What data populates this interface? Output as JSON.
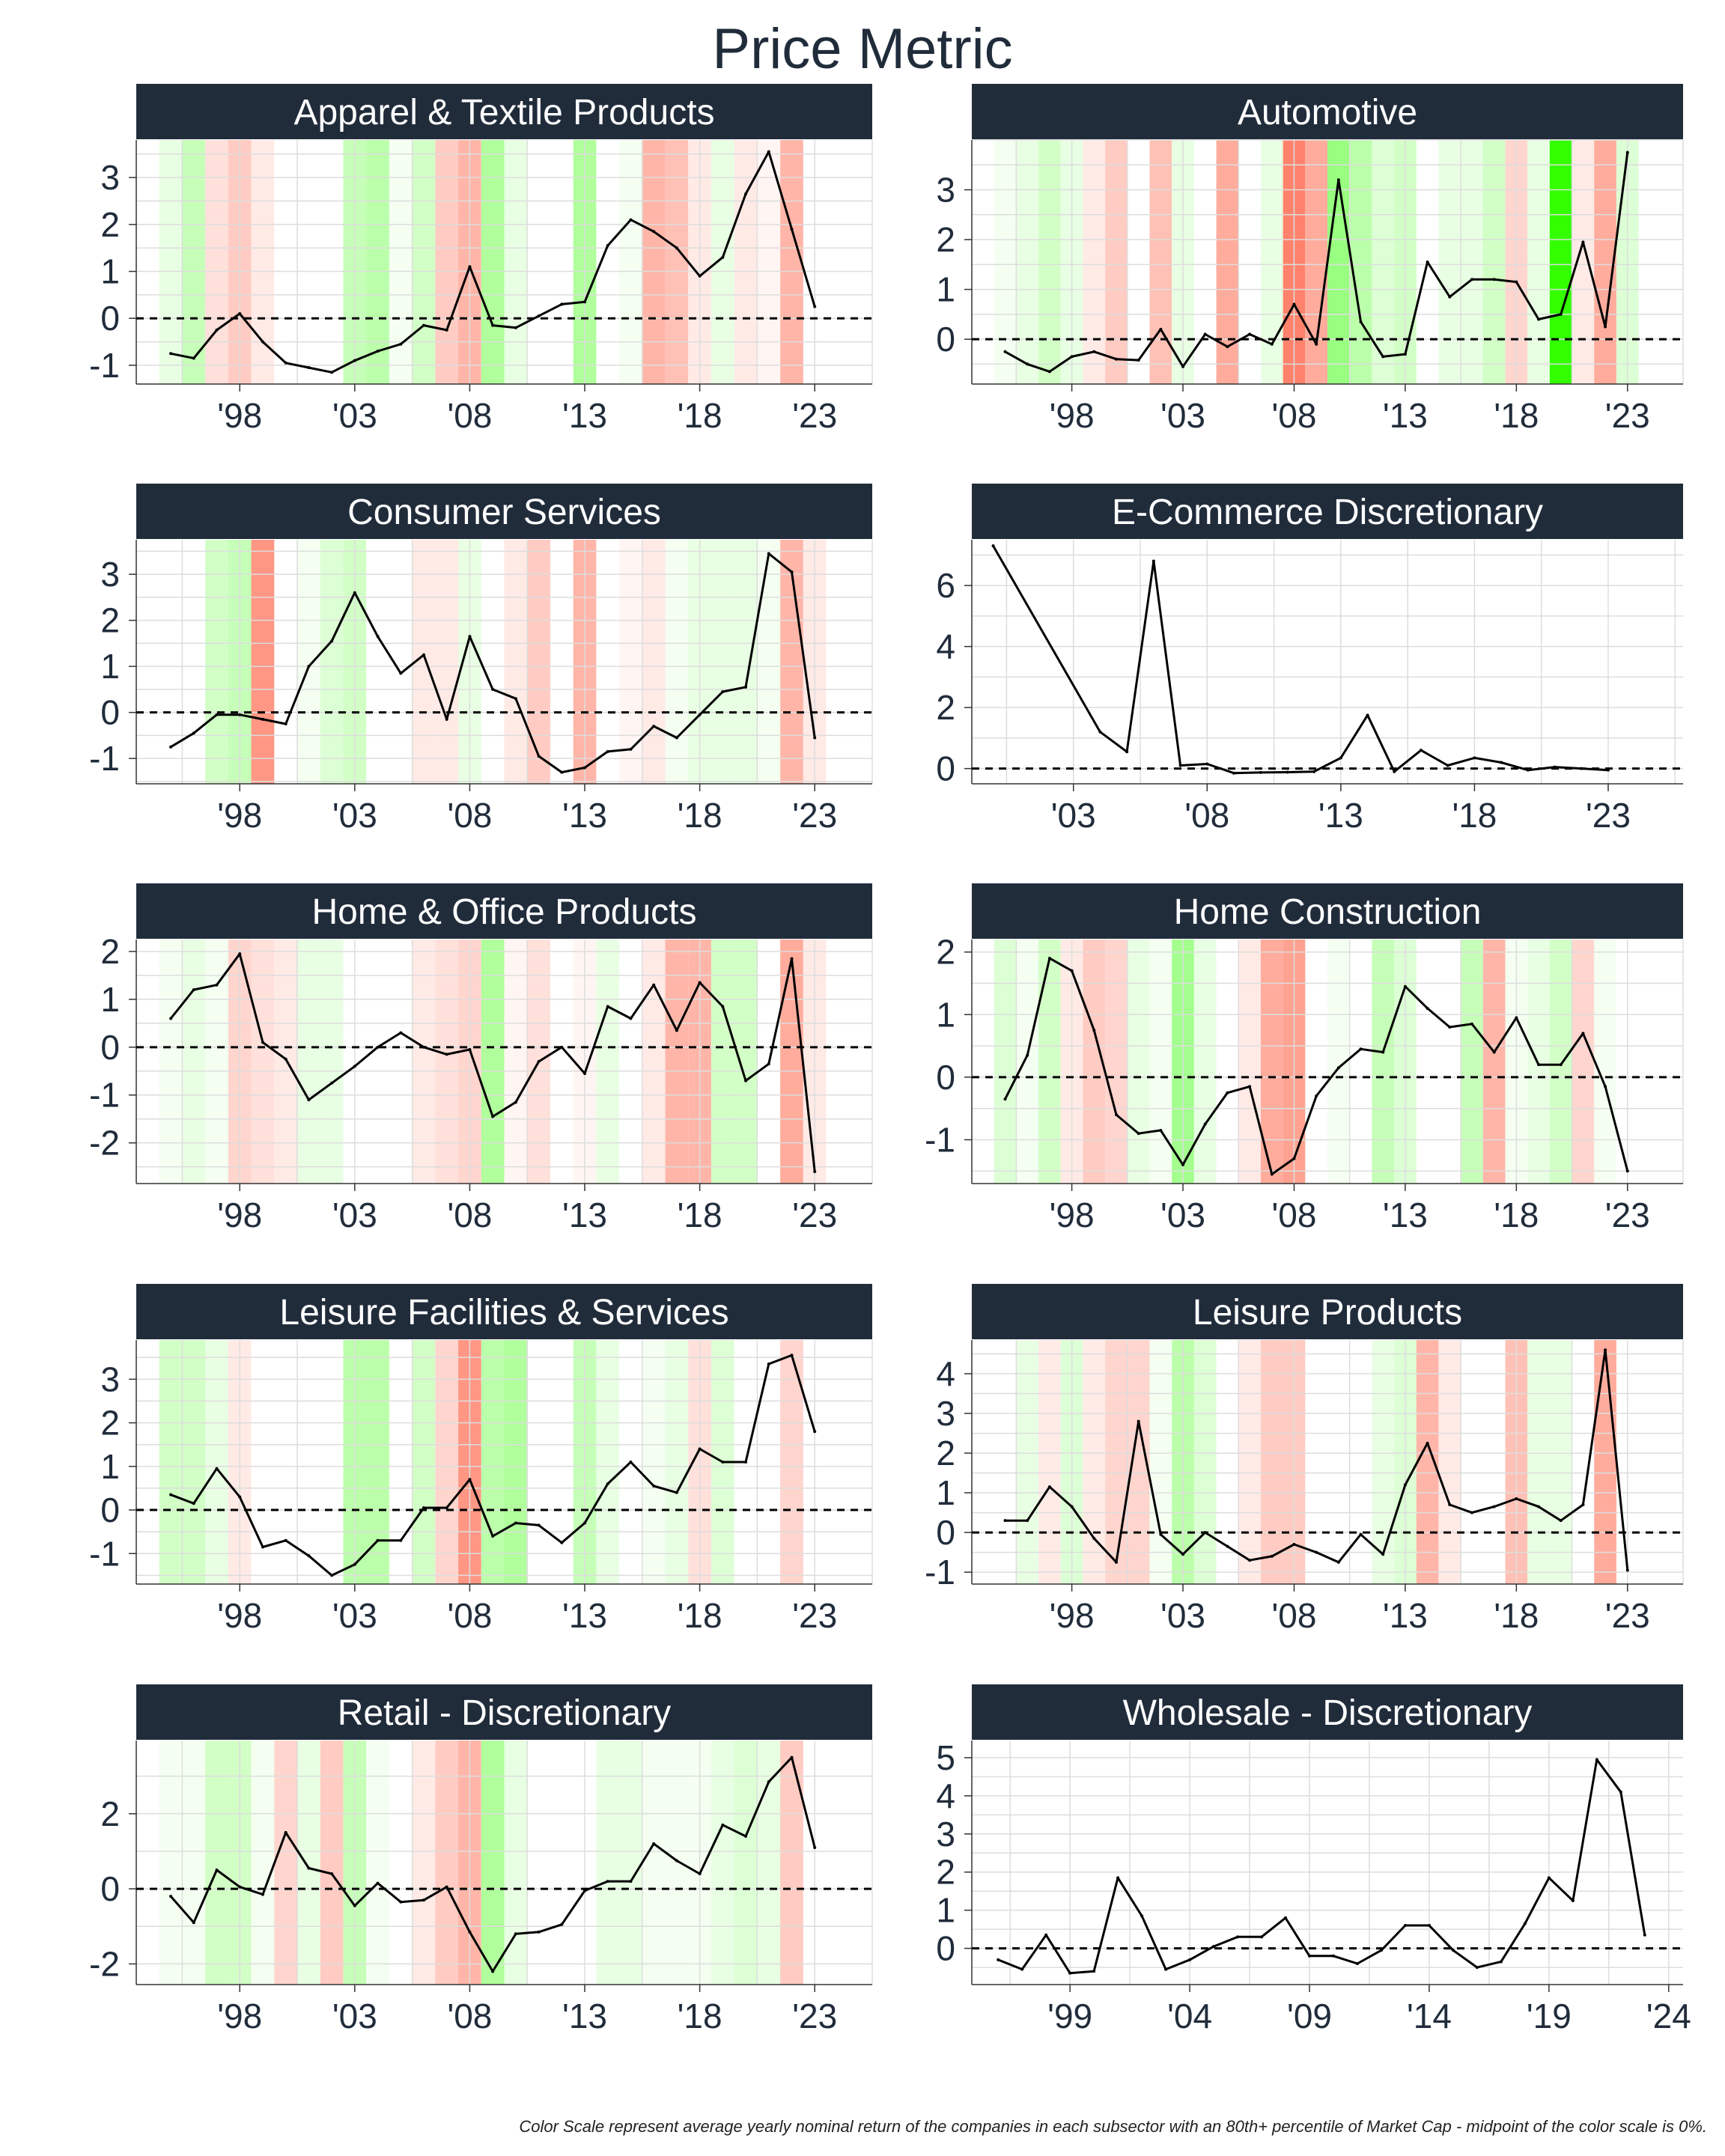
{
  "title": "Price Metric",
  "footnote": "Color Scale represent average yearly nominal return of the companies in each subsector with an 80th+ percentile of Market Cap - midpoint of the color scale is 0%.",
  "colors": {
    "header_bg": "#212c3b",
    "header_text": "#ffffff",
    "line": "#000000",
    "zero_line": "#000000",
    "grid": "#dddddd",
    "positive": "#33ff00",
    "negative": "#ff4422"
  },
  "chart_data": [
    {
      "type": "line",
      "title": "Apparel & Textile Products",
      "x": [
        1995,
        1996,
        1997,
        1998,
        1999,
        2000,
        2001,
        2002,
        2003,
        2004,
        2005,
        2006,
        2007,
        2008,
        2009,
        2010,
        2011,
        2012,
        2013,
        2014,
        2015,
        2016,
        2017,
        2018,
        2019,
        2020,
        2021,
        2022,
        2023
      ],
      "y": [
        -0.75,
        -0.85,
        -0.25,
        0.1,
        -0.5,
        -0.95,
        -1.05,
        -1.15,
        -0.9,
        -0.7,
        -0.55,
        -0.15,
        -0.25,
        1.1,
        -0.15,
        -0.2,
        0.05,
        0.3,
        0.35,
        1.55,
        2.1,
        1.85,
        1.5,
        0.9,
        1.3,
        2.65,
        3.55,
        1.9,
        0.25
      ],
      "ylim": [
        -1.4,
        3.8
      ],
      "yticks": [
        -1,
        0,
        1,
        2,
        3
      ],
      "xlim": [
        1993.5,
        2025.5
      ],
      "xticks": [
        1998,
        2003,
        2008,
        2013,
        2018,
        2023
      ],
      "xticklabels": [
        "'98",
        "'03",
        "'08",
        "'13",
        "'18",
        "'23"
      ],
      "color_scale": [
        0.1,
        0.25,
        -0.15,
        -0.25,
        -0.1,
        0.0,
        0.0,
        0.0,
        0.25,
        0.3,
        0.05,
        0.2,
        -0.25,
        -0.35,
        0.35,
        0.1,
        0.0,
        0.0,
        0.35,
        0.0,
        0.05,
        -0.35,
        -0.3,
        -0.1,
        0.1,
        -0.1,
        -0.05,
        -0.35,
        0.0
      ]
    },
    {
      "type": "line",
      "title": "Automotive",
      "x": [
        1995,
        1996,
        1997,
        1998,
        1999,
        2000,
        2001,
        2002,
        2003,
        2004,
        2005,
        2006,
        2007,
        2008,
        2009,
        2010,
        2011,
        2012,
        2013,
        2014,
        2015,
        2016,
        2017,
        2018,
        2019,
        2020,
        2021,
        2022,
        2023
      ],
      "y": [
        -0.25,
        -0.5,
        -0.65,
        -0.35,
        -0.25,
        -0.4,
        -0.42,
        0.2,
        -0.55,
        0.1,
        -0.15,
        0.1,
        -0.1,
        0.7,
        -0.1,
        3.2,
        0.35,
        -0.35,
        -0.3,
        1.55,
        0.85,
        1.2,
        1.2,
        1.15,
        0.4,
        0.5,
        1.95,
        0.25,
        3.75
      ],
      "ylim": [
        -0.9,
        4.0
      ],
      "yticks": [
        0,
        1,
        2,
        3
      ],
      "xlim": [
        1993.5,
        2025.5
      ],
      "xticks": [
        1998,
        2003,
        2008,
        2013,
        2018,
        2023
      ],
      "xticklabels": [
        "'98",
        "'03",
        "'08",
        "'13",
        "'18",
        "'23"
      ],
      "color_scale": [
        0.05,
        0.1,
        0.2,
        0.1,
        -0.1,
        -0.25,
        0.0,
        -0.3,
        0.1,
        0.0,
        -0.4,
        0.0,
        0.1,
        -0.6,
        -0.4,
        0.45,
        0.3,
        0.15,
        0.2,
        0.0,
        0.1,
        0.1,
        0.2,
        -0.2,
        0.1,
        0.9,
        -0.1,
        -0.4,
        0.15
      ]
    },
    {
      "type": "line",
      "title": "Consumer Services",
      "x": [
        1995,
        1996,
        1997,
        1998,
        1999,
        2000,
        2001,
        2002,
        2003,
        2004,
        2005,
        2006,
        2007,
        2008,
        2009,
        2010,
        2011,
        2012,
        2013,
        2014,
        2015,
        2016,
        2017,
        2018,
        2019,
        2020,
        2021,
        2022,
        2023
      ],
      "y": [
        -0.75,
        -0.45,
        -0.05,
        -0.05,
        -0.15,
        -0.25,
        1.0,
        1.55,
        2.6,
        1.65,
        0.85,
        1.25,
        -0.15,
        1.65,
        0.5,
        0.3,
        -0.95,
        -1.3,
        -1.2,
        -0.85,
        -0.8,
        -0.3,
        -0.55,
        -0.05,
        0.45,
        0.55,
        3.45,
        3.05,
        -0.55
      ],
      "ylim": [
        -1.55,
        3.75
      ],
      "yticks": [
        -1,
        0,
        1,
        2,
        3
      ],
      "xlim": [
        1993.5,
        2025.5
      ],
      "xticks": [
        1998,
        2003,
        2008,
        2013,
        2018,
        2023
      ],
      "xticklabels": [
        "'98",
        "'03",
        "'08",
        "'13",
        "'18",
        "'23"
      ],
      "color_scale": [
        0.0,
        0.0,
        0.2,
        0.25,
        -0.5,
        0.0,
        0.05,
        0.15,
        0.2,
        0.0,
        0.0,
        -0.1,
        -0.1,
        0.1,
        0.0,
        -0.1,
        -0.25,
        0.0,
        -0.35,
        0.0,
        -0.05,
        -0.1,
        0.05,
        0.1,
        0.1,
        0.1,
        0.05,
        -0.35,
        -0.1
      ]
    },
    {
      "type": "line",
      "title": "E-Commerce Discretionary",
      "x": [
        2000,
        2004,
        2005,
        2006,
        2007,
        2008,
        2009,
        2010,
        2011,
        2012,
        2013,
        2014,
        2015,
        2016,
        2017,
        2018,
        2019,
        2020,
        2021,
        2022,
        2023
      ],
      "y": [
        7.3,
        1.2,
        0.55,
        6.8,
        0.1,
        0.15,
        -0.15,
        -0.13,
        -0.12,
        -0.1,
        0.35,
        1.75,
        -0.1,
        0.6,
        0.1,
        0.35,
        0.2,
        -0.05,
        0.05,
        0.0,
        -0.05
      ],
      "ylim": [
        -0.5,
        7.5
      ],
      "yticks": [
        0,
        2,
        4,
        6
      ],
      "xlim": [
        1999.2,
        2025.8
      ],
      "xticks": [
        2003,
        2008,
        2013,
        2018,
        2023
      ],
      "xticklabels": [
        "'03",
        "'08",
        "'13",
        "'18",
        "'23"
      ],
      "color_scale": []
    },
    {
      "type": "line",
      "title": "Home & Office Products",
      "x": [
        1995,
        1996,
        1997,
        1998,
        1999,
        2000,
        2001,
        2002,
        2003,
        2004,
        2005,
        2006,
        2007,
        2008,
        2009,
        2010,
        2011,
        2012,
        2013,
        2014,
        2015,
        2016,
        2017,
        2018,
        2019,
        2020,
        2021,
        2022,
        2023
      ],
      "y": [
        0.6,
        1.2,
        1.3,
        1.95,
        0.1,
        -0.25,
        -1.1,
        -0.75,
        -0.4,
        0.0,
        0.3,
        0.0,
        -0.15,
        -0.05,
        -1.45,
        -1.15,
        -0.3,
        0.0,
        -0.55,
        0.85,
        0.6,
        1.3,
        0.35,
        1.35,
        0.85,
        -0.7,
        -0.35,
        1.85,
        -2.6
      ],
      "ylim": [
        -2.85,
        2.25
      ],
      "yticks": [
        -2,
        -1,
        0,
        1,
        2
      ],
      "xlim": [
        1993.5,
        2025.5
      ],
      "xticks": [
        1998,
        2003,
        2008,
        2013,
        2018,
        2023
      ],
      "xticklabels": [
        "'98",
        "'03",
        "'08",
        "'13",
        "'18",
        "'23"
      ],
      "color_scale": [
        0.05,
        0.1,
        0.05,
        -0.2,
        -0.15,
        -0.1,
        0.1,
        0.1,
        0.0,
        0.0,
        0.0,
        -0.1,
        -0.15,
        -0.2,
        0.35,
        -0.05,
        -0.15,
        0.0,
        -0.05,
        0.1,
        0.0,
        -0.1,
        -0.35,
        -0.35,
        0.2,
        0.2,
        0.0,
        -0.4,
        -0.1
      ]
    },
    {
      "type": "line",
      "title": "Home Construction",
      "x": [
        1995,
        1996,
        1997,
        1998,
        1999,
        2000,
        2001,
        2002,
        2003,
        2004,
        2005,
        2006,
        2007,
        2008,
        2009,
        2010,
        2011,
        2012,
        2013,
        2014,
        2015,
        2016,
        2017,
        2018,
        2019,
        2020,
        2021,
        2022,
        2023
      ],
      "y": [
        -0.35,
        0.35,
        1.9,
        1.7,
        0.75,
        -0.6,
        -0.9,
        -0.85,
        -1.4,
        -0.75,
        -0.25,
        -0.15,
        -1.55,
        -1.3,
        -0.3,
        0.15,
        0.45,
        0.4,
        1.45,
        1.1,
        0.8,
        0.85,
        0.4,
        0.95,
        0.2,
        0.2,
        0.7,
        -0.15,
        -1.5
      ],
      "ylim": [
        -1.7,
        2.2
      ],
      "yticks": [
        -1,
        0,
        1,
        2
      ],
      "xlim": [
        1993.5,
        2025.5
      ],
      "xticks": [
        1998,
        2003,
        2008,
        2013,
        2018,
        2023
      ],
      "xticklabels": [
        "'98",
        "'03",
        "'08",
        "'13",
        "'18",
        "'23"
      ],
      "color_scale": [
        0.15,
        0.05,
        0.2,
        -0.1,
        -0.25,
        -0.2,
        0.1,
        0.05,
        0.4,
        0.1,
        0.0,
        -0.1,
        -0.4,
        -0.45,
        0.0,
        0.05,
        0.0,
        0.25,
        0.15,
        0.0,
        0.0,
        0.25,
        -0.35,
        0.05,
        0.1,
        0.2,
        -0.2,
        0.05,
        0.0
      ]
    },
    {
      "type": "line",
      "title": "Leisure Facilities & Services",
      "x": [
        1995,
        1996,
        1997,
        1998,
        1999,
        2000,
        2001,
        2002,
        2003,
        2004,
        2005,
        2006,
        2007,
        2008,
        2009,
        2010,
        2011,
        2012,
        2013,
        2014,
        2015,
        2016,
        2017,
        2018,
        2019,
        2020,
        2021,
        2022,
        2023
      ],
      "y": [
        0.35,
        0.15,
        0.95,
        0.3,
        -0.85,
        -0.7,
        -1.05,
        -1.5,
        -1.25,
        -0.7,
        -0.7,
        0.05,
        0.05,
        0.7,
        -0.6,
        -0.3,
        -0.35,
        -0.75,
        -0.3,
        0.6,
        1.1,
        0.55,
        0.4,
        1.4,
        1.1,
        1.1,
        3.35,
        3.55,
        1.8
      ],
      "ylim": [
        -1.7,
        3.9
      ],
      "yticks": [
        -1,
        0,
        1,
        2,
        3
      ],
      "xlim": [
        1993.5,
        2025.5
      ],
      "xticks": [
        1998,
        2003,
        2008,
        2013,
        2018,
        2023
      ],
      "xticklabels": [
        "'98",
        "'03",
        "'08",
        "'13",
        "'18",
        "'23"
      ],
      "color_scale": [
        0.2,
        0.2,
        0.1,
        -0.1,
        0.0,
        0.0,
        0.0,
        0.0,
        0.3,
        0.3,
        0.0,
        0.2,
        -0.2,
        -0.5,
        0.3,
        0.35,
        0.0,
        0.0,
        0.25,
        0.1,
        0.0,
        0.05,
        0.1,
        -0.15,
        0.15,
        0.0,
        0.0,
        -0.2,
        0.0
      ]
    },
    {
      "type": "line",
      "title": "Leisure Products",
      "x": [
        1995,
        1996,
        1997,
        1998,
        1999,
        2000,
        2001,
        2002,
        2003,
        2004,
        2005,
        2006,
        2007,
        2008,
        2009,
        2010,
        2011,
        2012,
        2013,
        2014,
        2015,
        2016,
        2017,
        2018,
        2019,
        2020,
        2021,
        2022,
        2023
      ],
      "y": [
        0.3,
        0.3,
        1.15,
        0.65,
        -0.15,
        -0.75,
        2.8,
        -0.05,
        -0.55,
        0.0,
        -0.35,
        -0.7,
        -0.6,
        -0.3,
        -0.5,
        -0.75,
        -0.05,
        -0.55,
        1.2,
        2.25,
        0.7,
        0.5,
        0.65,
        0.85,
        0.65,
        0.3,
        0.7,
        4.6,
        -0.95
      ],
      "ylim": [
        -1.3,
        4.85
      ],
      "yticks": [
        -1,
        0,
        1,
        2,
        3,
        4
      ],
      "xlim": [
        1993.5,
        2025.5
      ],
      "xticks": [
        1998,
        2003,
        2008,
        2013,
        2018,
        2023
      ],
      "xticklabels": [
        "'98",
        "'03",
        "'08",
        "'13",
        "'18",
        "'23"
      ],
      "color_scale": [
        0.0,
        0.1,
        -0.1,
        0.15,
        -0.1,
        -0.2,
        -0.2,
        0.05,
        0.3,
        0.15,
        0.0,
        -0.1,
        -0.25,
        -0.25,
        0.0,
        0.0,
        0.0,
        0.1,
        0.15,
        -0.35,
        -0.1,
        0.0,
        0.0,
        -0.3,
        0.1,
        0.1,
        0.0,
        -0.4,
        0.0
      ]
    },
    {
      "type": "line",
      "title": "Retail - Discretionary",
      "x": [
        1995,
        1996,
        1997,
        1998,
        1999,
        2000,
        2001,
        2002,
        2003,
        2004,
        2005,
        2006,
        2007,
        2008,
        2009,
        2010,
        2011,
        2012,
        2013,
        2014,
        2015,
        2016,
        2017,
        2018,
        2019,
        2020,
        2021,
        2022,
        2023
      ],
      "y": [
        -0.2,
        -0.9,
        0.5,
        0.05,
        -0.15,
        1.5,
        0.55,
        0.4,
        -0.45,
        0.15,
        -0.35,
        -0.3,
        0.05,
        -1.15,
        -2.2,
        -1.2,
        -1.15,
        -0.95,
        -0.05,
        0.2,
        0.2,
        1.2,
        0.75,
        0.4,
        1.7,
        1.4,
        2.85,
        3.5,
        1.1
      ],
      "ylim": [
        -2.55,
        3.95
      ],
      "yticks": [
        -2,
        0,
        2
      ],
      "xlim": [
        1993.5,
        2025.5
      ],
      "xticks": [
        1998,
        2003,
        2008,
        2013,
        2018,
        2023
      ],
      "xticklabels": [
        "'98",
        "'03",
        "'08",
        "'13",
        "'18",
        "'23"
      ],
      "color_scale": [
        0.05,
        0.05,
        0.2,
        0.2,
        0.05,
        -0.2,
        0.1,
        -0.25,
        0.25,
        0.05,
        0.0,
        -0.1,
        -0.25,
        -0.35,
        0.35,
        0.1,
        0.0,
        0.0,
        0.0,
        0.1,
        0.1,
        0.05,
        0.05,
        0.05,
        0.1,
        0.15,
        0.1,
        -0.25,
        0.0
      ]
    },
    {
      "type": "line",
      "title": "Wholesale - Discretionary",
      "x": [
        1996,
        1997,
        1998,
        1999,
        2000,
        2001,
        2002,
        2003,
        2004,
        2005,
        2006,
        2007,
        2008,
        2009,
        2010,
        2011,
        2012,
        2013,
        2014,
        2015,
        2016,
        2017,
        2018,
        2019,
        2020,
        2021,
        2022,
        2023
      ],
      "y": [
        -0.3,
        -0.55,
        0.35,
        -0.65,
        -0.6,
        1.85,
        0.85,
        -0.55,
        -0.3,
        0.05,
        0.3,
        0.3,
        0.8,
        -0.2,
        -0.2,
        -0.4,
        -0.05,
        0.6,
        0.6,
        -0.05,
        -0.5,
        -0.35,
        0.65,
        1.85,
        1.25,
        4.95,
        4.1,
        0.35
      ],
      "ylim": [
        -0.95,
        5.45
      ],
      "yticks": [
        0,
        1,
        2,
        3,
        4,
        5
      ],
      "xlim": [
        1994.9,
        2024.6
      ],
      "xticks": [
        1999,
        2004,
        2009,
        2014,
        2019,
        2024
      ],
      "xticklabels": [
        "'99",
        "'04",
        "'09",
        "'14",
        "'19",
        "'24"
      ],
      "color_scale": []
    }
  ]
}
